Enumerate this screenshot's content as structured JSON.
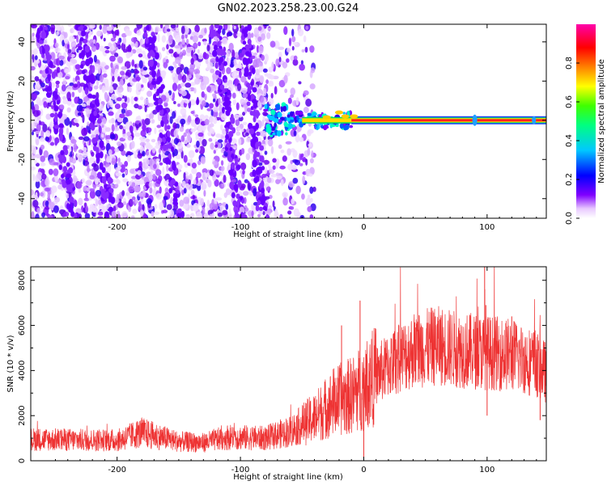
{
  "title": "GN02.2023.258.23.00.G24",
  "chart_data": [
    {
      "type": "heatmap",
      "xlabel": "Height of straight line (km)",
      "ylabel": "Frequency (Hz)",
      "xlim": [
        -270,
        148
      ],
      "ylim": [
        -50,
        49
      ],
      "xticks": [
        -200,
        -100,
        0,
        100
      ],
      "yticks": [
        -40,
        -20,
        0,
        20,
        40
      ],
      "colorbar": {
        "label": "Normalized spectral amplitude",
        "range": [
          0,
          1
        ],
        "ticks": [
          0.0,
          0.2,
          0.4,
          0.6,
          0.8
        ],
        "colormap": [
          "#ffffff",
          "#cc88ff",
          "#8000ff",
          "#0000ff",
          "#00c8ff",
          "#00ff80",
          "#40ff00",
          "#ffff00",
          "#ff8000",
          "#ff0000",
          "#ff00aa"
        ]
      },
      "features": {
        "noise_region_x": [
          -270,
          -50
        ],
        "signal_line_frequency": 0,
        "signal_start_x": -80,
        "signal_dense_start_x": -10
      }
    },
    {
      "type": "line",
      "xlabel": "Height of straight line (km)",
      "ylabel": "SNR (10 * v/v)",
      "xlim": [
        -270,
        148
      ],
      "ylim": [
        0,
        8600
      ],
      "xticks": [
        -200,
        -100,
        0,
        100
      ],
      "yticks": [
        0,
        2000,
        4000,
        6000,
        8000
      ],
      "color": "#ee3333",
      "profile": [
        {
          "x": -270,
          "y": 950
        },
        {
          "x": -200,
          "y": 900
        },
        {
          "x": -180,
          "y": 1250
        },
        {
          "x": -150,
          "y": 850
        },
        {
          "x": -130,
          "y": 800
        },
        {
          "x": -110,
          "y": 1050
        },
        {
          "x": -80,
          "y": 1000
        },
        {
          "x": -60,
          "y": 1300
        },
        {
          "x": -40,
          "y": 1900
        },
        {
          "x": -25,
          "y": 2600
        },
        {
          "x": -10,
          "y": 2900
        },
        {
          "x": 0,
          "y": 3300
        },
        {
          "x": 10,
          "y": 3800
        },
        {
          "x": 25,
          "y": 4400
        },
        {
          "x": 40,
          "y": 4900
        },
        {
          "x": 60,
          "y": 5100
        },
        {
          "x": 80,
          "y": 4900
        },
        {
          "x": 100,
          "y": 4800
        },
        {
          "x": 120,
          "y": 4700
        },
        {
          "x": 140,
          "y": 4300
        },
        {
          "x": 148,
          "y": 3900
        }
      ],
      "spikes": [
        {
          "x": -18,
          "y": 6000
        },
        {
          "x": -3,
          "y": 7100
        },
        {
          "x": 98,
          "y": 8600
        },
        {
          "x": 99,
          "y": 6900
        },
        {
          "x": 58,
          "y": 6400
        },
        {
          "x": 120,
          "y": 6400
        },
        {
          "x": 100,
          "y": 2000
        },
        {
          "x": 143,
          "y": 1800
        },
        {
          "x": 0,
          "y": 100
        }
      ]
    }
  ]
}
